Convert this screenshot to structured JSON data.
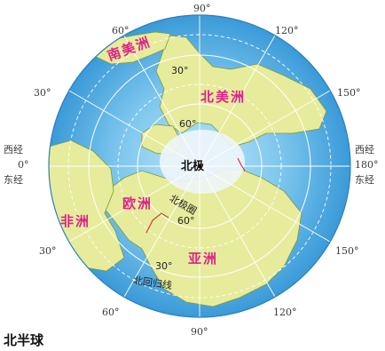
{
  "map": {
    "title": "北半球",
    "pole": "北极",
    "continents": {
      "south_america": "南美洲",
      "north_america": "北美洲",
      "europe": "欧洲",
      "africa": "非洲",
      "asia": "亚洲"
    },
    "lines": {
      "arctic_circle": "北极圈",
      "tropic_of_cancer": "北回归线"
    },
    "longitudes": {
      "top": "90°",
      "top_left": "60°",
      "top_right": "120°",
      "upper_left": "30°",
      "upper_right": "150°",
      "west_label": "西经",
      "zero": "0°",
      "east_label": "东经",
      "east_label_right": "西经",
      "one_eighty": "180°",
      "east_label_right_bottom": "东经",
      "lower_left": "30°",
      "lower_right": "150°",
      "bottom_left": "60°",
      "bottom_right": "120°",
      "bottom": "90°"
    },
    "latitudes": {
      "lat30_upper": "30°",
      "lat60_upper": "60°",
      "lat60_lower": "60°",
      "lat30_lower": "30°"
    },
    "colors": {
      "ocean": "#5ab4e6",
      "land": "#e6ec9c",
      "ice": "#eef6fb",
      "grid": "#ffffff",
      "continent_label": "#e0208a"
    }
  }
}
